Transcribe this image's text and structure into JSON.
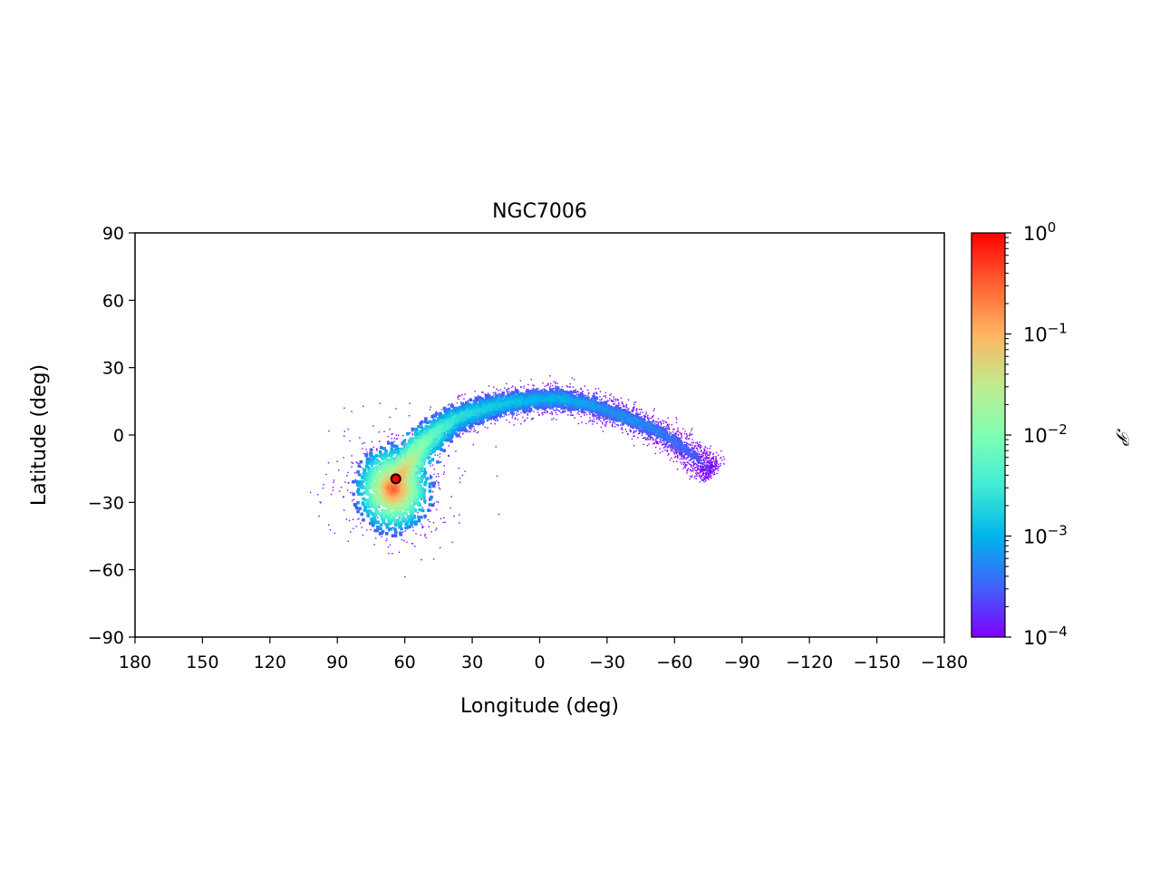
{
  "chart_data": {
    "type": "scatter",
    "title": "NGC7006",
    "xlabel": "Longitude (deg)",
    "ylabel": "Latitude (deg)",
    "xlim": [
      180,
      -180
    ],
    "ylim": [
      -90,
      90
    ],
    "xticks": [
      180,
      150,
      120,
      90,
      60,
      30,
      0,
      -30,
      -60,
      -90,
      -120,
      -150,
      -180
    ],
    "xtick_labels": [
      "180",
      "150",
      "120",
      "90",
      "60",
      "30",
      "0",
      "−30",
      "−60",
      "−90",
      "−120",
      "−150",
      "−180"
    ],
    "yticks": [
      90,
      60,
      30,
      0,
      -30,
      -60,
      -90
    ],
    "ytick_labels": [
      "90",
      "60",
      "30",
      "0",
      "−30",
      "−60",
      "−90"
    ],
    "grid": false,
    "stream_track": {
      "description_note": "approximate centerline of stellar stream (longitude, latitude, relative density exponent)",
      "points": [
        [
          66,
          -25,
          -0.6
        ],
        [
          63,
          -20,
          -0.9
        ],
        [
          58,
          -12,
          -1.5
        ],
        [
          52,
          -4,
          -2.0
        ],
        [
          45,
          2,
          -2.3
        ],
        [
          38,
          7,
          -2.6
        ],
        [
          30,
          10,
          -2.7
        ],
        [
          20,
          13,
          -2.8
        ],
        [
          10,
          15,
          -2.9
        ],
        [
          0,
          16,
          -3.0
        ],
        [
          -10,
          16,
          -3.0
        ],
        [
          -20,
          14,
          -3.1
        ],
        [
          -30,
          11,
          -3.2
        ],
        [
          -40,
          7,
          -3.2
        ],
        [
          -50,
          3,
          -3.3
        ],
        [
          -60,
          -3,
          -3.4
        ],
        [
          -68,
          -9,
          -3.5
        ],
        [
          -74,
          -14,
          -3.7
        ],
        [
          -77,
          -17,
          -3.9
        ]
      ],
      "progenitor_blob": {
        "lon": 65,
        "lat": -24,
        "peak_exponent": -0.5
      }
    },
    "progenitor": {
      "lon": 64,
      "lat": -19.5,
      "color": "#ff0000",
      "edge": "#000000"
    },
    "colorbar": {
      "label": "𝒫",
      "scale": "log",
      "range": [
        0.0001,
        1
      ],
      "tick_bases": [
        "10",
        "10",
        "10",
        "10",
        "10"
      ],
      "tick_exponents": [
        "0",
        "−1",
        "−2",
        "−3",
        "−4"
      ],
      "tick_values": [
        1,
        0.1,
        0.01,
        0.001,
        0.0001
      ],
      "colormap": "rainbow",
      "colors": [
        "#8000ff",
        "#4062fa",
        "#00b5eb",
        "#40ecd4",
        "#80ffb4",
        "#c0eb8d",
        "#ffb462",
        "#ff6030",
        "#ff0000"
      ]
    }
  }
}
